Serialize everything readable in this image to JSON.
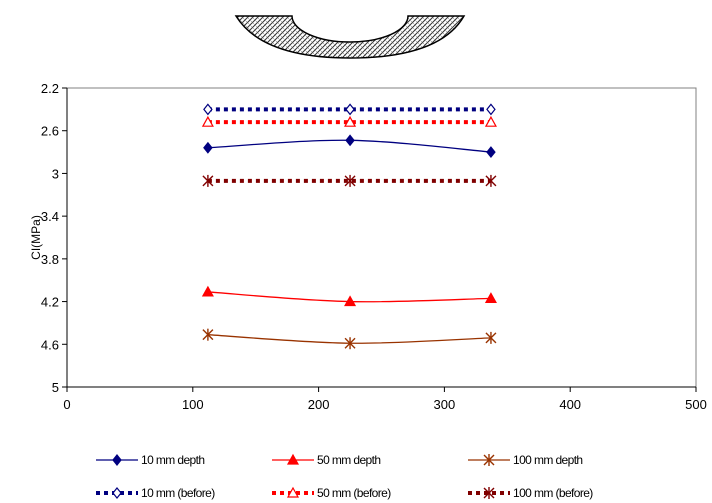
{
  "chart_data": {
    "type": "line",
    "title": "",
    "xlabel": "",
    "ylabel": "CI(MPa)",
    "xlim": [
      0,
      500
    ],
    "ylim": [
      2.2,
      5
    ],
    "y_reversed": true,
    "x_ticks": [
      "0",
      "100",
      "200",
      "300",
      "400",
      "500"
    ],
    "y_ticks": [
      "2.2",
      "2.6",
      "3",
      "3.4",
      "3.8",
      "4.2",
      "4.6",
      "5"
    ],
    "grid": false,
    "legend_position": "bottom",
    "x": [
      112,
      225,
      337
    ],
    "series": [
      {
        "name": "10 mm depth",
        "values": [
          2.76,
          2.69,
          2.8
        ],
        "color": "#000080",
        "marker": "diamond-filled",
        "line": "solid"
      },
      {
        "name": "50 mm depth",
        "values": [
          4.11,
          4.2,
          4.17
        ],
        "color": "#ff0000",
        "marker": "triangle-filled",
        "line": "solid"
      },
      {
        "name": "100 mm depth",
        "values": [
          4.51,
          4.59,
          4.54
        ],
        "color": "#993300",
        "marker": "asterisk",
        "line": "solid"
      },
      {
        "name": "10 mm (before)",
        "values": [
          2.4,
          2.4,
          2.4
        ],
        "color": "#000080",
        "marker": "diamond-open",
        "line": "dotted"
      },
      {
        "name": "50 mm (before)",
        "values": [
          2.52,
          2.52,
          2.52
        ],
        "color": "#ff0000",
        "marker": "triangle-open",
        "line": "dotted"
      },
      {
        "name": "100 mm (before)",
        "values": [
          3.07,
          3.07,
          3.07
        ],
        "color": "#800000",
        "marker": "asterisk",
        "line": "dotted"
      }
    ]
  }
}
